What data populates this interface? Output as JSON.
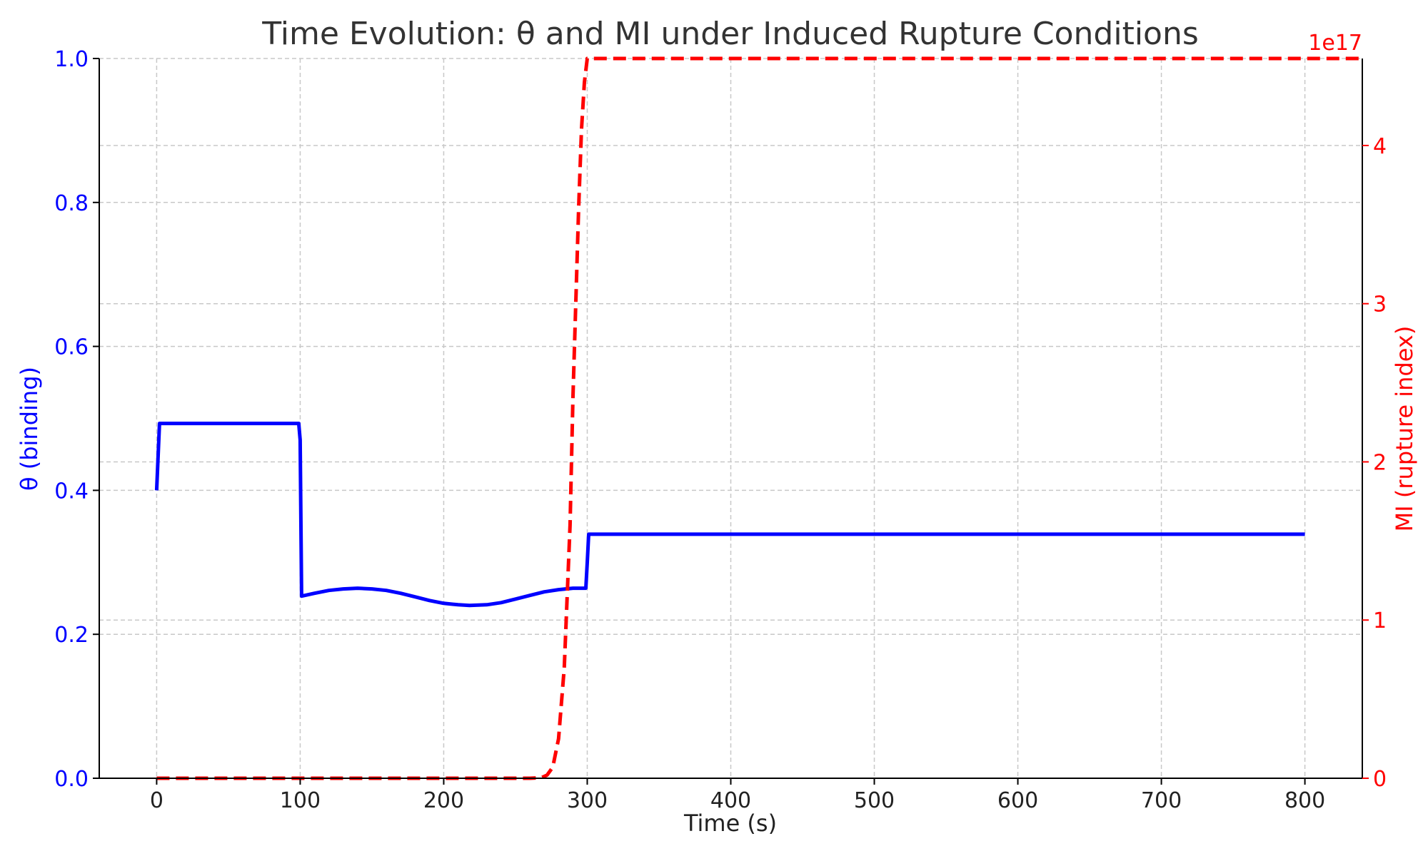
{
  "chart_data": {
    "type": "line",
    "title": "Time Evolution: θ and MI under Induced Rupture Conditions",
    "xlabel": "Time (s)",
    "ylabel_left": "θ (binding)",
    "ylabel_right": "MI (rupture index)",
    "right_axis_multiplier": "1e17",
    "xlim": [
      -40,
      840
    ],
    "ylim_left": [
      0,
      1
    ],
    "ylim_right": [
      0,
      4.55e+17
    ],
    "x_ticks": [
      0,
      100,
      200,
      300,
      400,
      500,
      600,
      700,
      800
    ],
    "x_tick_labels": [
      "0",
      "100",
      "200",
      "300",
      "400",
      "500",
      "600",
      "700",
      "800"
    ],
    "y_left_ticks": [
      0,
      0.2,
      0.4,
      0.6,
      0.8,
      1.0
    ],
    "y_left_tick_labels": [
      "0.0",
      "0.2",
      "0.4",
      "0.6",
      "0.8",
      "1.0"
    ],
    "y_right_ticks": [
      0,
      1e+17,
      2e+17,
      3e+17,
      4e+17
    ],
    "y_right_tick_labels": [
      "0",
      "1",
      "2",
      "3",
      "4"
    ],
    "grid": true,
    "colors": {
      "theta": "#0000ff",
      "mi": "#ff0000",
      "title": "#333333",
      "grid": "#c8c8c8"
    },
    "series": [
      {
        "axis": "left",
        "line_style": "solid",
        "x": [
          0,
          2,
          99,
          100,
          101,
          110,
          120,
          130,
          140,
          150,
          160,
          170,
          180,
          190,
          200,
          210,
          218,
          230,
          240,
          250,
          260,
          270,
          280,
          290,
          299,
          300,
          301,
          310,
          400,
          500,
          600,
          700,
          800
        ],
        "y": [
          0.4,
          0.493,
          0.493,
          0.47,
          0.253,
          0.257,
          0.261,
          0.263,
          0.264,
          0.263,
          0.261,
          0.257,
          0.252,
          0.247,
          0.243,
          0.241,
          0.24,
          0.241,
          0.244,
          0.249,
          0.254,
          0.259,
          0.262,
          0.264,
          0.264,
          0.3,
          0.339,
          0.339,
          0.339,
          0.339,
          0.339,
          0.339,
          0.339
        ]
      },
      {
        "axis": "right",
        "line_style": "dashed",
        "x": [
          0,
          100,
          200,
          260,
          268,
          272,
          276,
          280,
          284,
          288,
          290,
          292,
          294,
          296,
          298,
          300,
          301,
          400,
          500,
          600,
          700,
          800,
          840
        ],
        "y": [
          0,
          0,
          0,
          0,
          300000000000000.0,
          2000000000000000.0,
          7000000000000000.0,
          2.5e+16,
          7e+16,
          1.6e+17,
          2.4e+17,
          3e+17,
          3.6e+17,
          4.1e+17,
          4.4e+17,
          4.55e+17,
          4.55e+17,
          4.55e+17,
          4.55e+17,
          4.55e+17,
          4.55e+17,
          4.55e+17,
          4.55e+17
        ]
      }
    ]
  }
}
